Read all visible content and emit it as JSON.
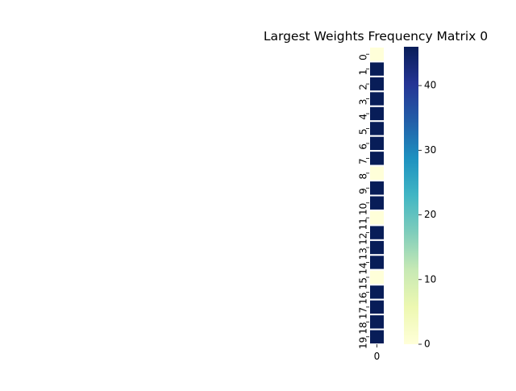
{
  "chart_data": {
    "type": "heatmap",
    "title": "Largest Weights Frequency Matrix 0",
    "row_labels": [
      "0",
      "1",
      "2",
      "3",
      "4",
      "5",
      "6",
      "7",
      "8",
      "9",
      "10",
      "11",
      "12",
      "13",
      "14",
      "15",
      "16",
      "17",
      "18",
      "19"
    ],
    "col_labels": [
      "0"
    ],
    "values": [
      [
        0
      ],
      [
        46
      ],
      [
        46
      ],
      [
        46
      ],
      [
        46
      ],
      [
        46
      ],
      [
        46
      ],
      [
        46
      ],
      [
        0
      ],
      [
        46
      ],
      [
        46
      ],
      [
        0
      ],
      [
        46
      ],
      [
        46
      ],
      [
        46
      ],
      [
        0
      ],
      [
        46
      ],
      [
        46
      ],
      [
        46
      ],
      [
        46
      ]
    ],
    "colormap": "YlGnBu",
    "vmin": 0,
    "vmax": 46,
    "colorbar_ticks": [
      0,
      10,
      20,
      30,
      40
    ],
    "cell_border_color": "#ffffff"
  }
}
